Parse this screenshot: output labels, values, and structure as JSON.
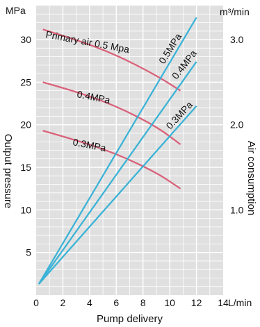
{
  "chart_data": {
    "type": "line",
    "x_axis": {
      "label": "Pump delivery",
      "unit": "L/min",
      "range": [
        0,
        14
      ],
      "ticks": [
        "0",
        "2",
        "4",
        "6",
        "8",
        "10",
        "12",
        "14"
      ]
    },
    "y_left_axis": {
      "label": "Output pressure",
      "unit": "MPa",
      "range": [
        0,
        34
      ],
      "ticks": [
        "5",
        "10",
        "15",
        "20",
        "25",
        "30"
      ]
    },
    "y_right_axis": {
      "label": "Air consumption",
      "unit": "m³/min",
      "range": [
        0,
        3.4
      ],
      "ticks": [
        "1.0",
        "2.0",
        "3.0"
      ]
    },
    "grid": true,
    "background_color": "#e0e0e0",
    "grid_color": "#ffffff",
    "pressure_color": "#d9627a",
    "consumption_color": "#3bb3d6",
    "pressure_series": [
      {
        "name": "Primary air 0.5 Mpa",
        "points": [
          [
            0.5,
            31.2
          ],
          [
            3,
            30.0
          ],
          [
            6,
            28.2
          ],
          [
            9,
            25.8
          ],
          [
            10.8,
            24.0
          ]
        ]
      },
      {
        "name": "0.4MPa",
        "points": [
          [
            0.5,
            25.0
          ],
          [
            3,
            23.9
          ],
          [
            6,
            22.2
          ],
          [
            9,
            19.8
          ],
          [
            10.8,
            17.7
          ]
        ]
      },
      {
        "name": "0.3MPa",
        "points": [
          [
            0.5,
            19.3
          ],
          [
            3,
            18.2
          ],
          [
            6,
            16.6
          ],
          [
            9,
            14.4
          ],
          [
            10.8,
            12.5
          ]
        ]
      }
    ],
    "consumption_series": [
      {
        "name": "0.5MPa",
        "points": [
          [
            0.2,
            0.13
          ],
          [
            12.0,
            3.26
          ]
        ]
      },
      {
        "name": "0.4MPa",
        "points": [
          [
            0.2,
            0.13
          ],
          [
            12.0,
            2.74
          ]
        ]
      },
      {
        "name": "0.3MPa",
        "points": [
          [
            0.2,
            0.13
          ],
          [
            12.0,
            2.22
          ]
        ]
      }
    ]
  }
}
